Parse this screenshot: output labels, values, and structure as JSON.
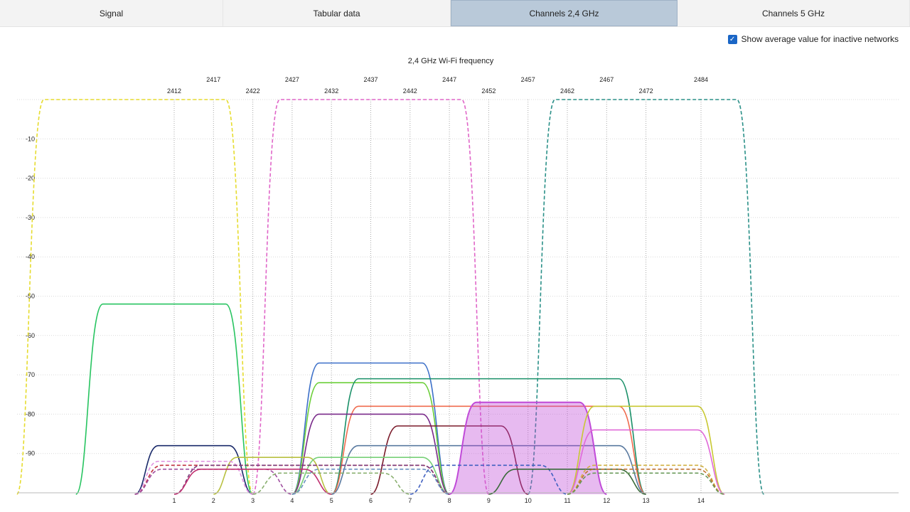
{
  "tabs": [
    {
      "label": "Signal",
      "active": false
    },
    {
      "label": "Tabular data",
      "active": false
    },
    {
      "label": "Channels 2,4 GHz",
      "active": true
    },
    {
      "label": "Channels 5 GHz",
      "active": false
    }
  ],
  "options": {
    "show_average_label": "Show average value for inactive networks",
    "show_average_checked": true
  },
  "chart_data": {
    "type": "area",
    "title": "2,4 GHz Wi-Fi frequency",
    "ylim": [
      -100,
      0
    ],
    "yticks": [
      -10,
      -20,
      -30,
      -40,
      -50,
      -60,
      -70,
      -80,
      -90
    ],
    "channels": [
      1,
      2,
      3,
      4,
      5,
      6,
      7,
      8,
      9,
      10,
      11,
      12,
      13,
      14
    ],
    "frequencies_mhz": [
      2412,
      2417,
      2422,
      2427,
      2432,
      2437,
      2442,
      2447,
      2452,
      2457,
      2462,
      2467,
      2472,
      2484
    ],
    "grid": true,
    "series": [
      {
        "channel_start": -3,
        "channel_end": 3,
        "level": 0,
        "color": "#e6dc2e",
        "style": "dashed"
      },
      {
        "channel_start": 3,
        "channel_end": 9,
        "level": 0,
        "color": "#e066c8",
        "style": "dashed"
      },
      {
        "channel_start": 10,
        "channel_end": 16,
        "level": 0,
        "color": "#2a9088",
        "style": "dashed"
      },
      {
        "channel_start": -1.5,
        "channel_end": 3,
        "level": -52,
        "color": "#27c460",
        "style": "solid"
      },
      {
        "channel_start": 4,
        "channel_end": 8,
        "level": -67,
        "color": "#3b6fc8",
        "style": "solid"
      },
      {
        "channel_start": 4,
        "channel_end": 8,
        "level": -72,
        "color": "#6ccf3a",
        "style": "solid"
      },
      {
        "channel_start": 5,
        "channel_end": 13,
        "level": -71,
        "color": "#1a9068",
        "style": "solid"
      },
      {
        "channel_start": 5,
        "channel_end": 13,
        "level": -78,
        "color": "#f06b4e",
        "style": "solid"
      },
      {
        "channel_start": 4,
        "channel_end": 8,
        "level": -80,
        "color": "#7a2a8a",
        "style": "solid"
      },
      {
        "channel_start": 6,
        "channel_end": 10,
        "level": -83,
        "color": "#7a1a2a",
        "style": "solid"
      },
      {
        "channel_start": 5,
        "channel_end": 13,
        "level": -88,
        "color": "#5a7aa0",
        "style": "solid"
      },
      {
        "channel_start": 8,
        "channel_end": 12,
        "level": -77,
        "color": "#c04ad8",
        "style": "filled"
      },
      {
        "channel_start": 11,
        "channel_end": 15,
        "level": -78,
        "color": "#c8c832",
        "style": "solid"
      },
      {
        "channel_start": 11,
        "channel_end": 15,
        "level": -84,
        "color": "#e06ad8",
        "style": "solid"
      },
      {
        "channel_start": 0,
        "channel_end": 3,
        "level": -88,
        "color": "#1a2a6a",
        "style": "solid"
      },
      {
        "channel_start": 2,
        "channel_end": 5,
        "level": -91,
        "color": "#b8c040",
        "style": "solid"
      },
      {
        "channel_start": 4,
        "channel_end": 8,
        "level": -91,
        "color": "#78d078",
        "style": "solid"
      },
      {
        "channel_start": 0,
        "channel_end": 3,
        "level": -92,
        "color": "#e090e0",
        "style": "dashed"
      },
      {
        "channel_start": 0,
        "channel_end": 8,
        "level": -93,
        "color": "#c03040",
        "style": "dashed"
      },
      {
        "channel_start": 1,
        "channel_end": 8,
        "level": -93,
        "color": "#7a3a7a",
        "style": "dashed"
      },
      {
        "channel_start": 7,
        "channel_end": 11,
        "level": -93,
        "color": "#4060c0",
        "style": "dashed"
      },
      {
        "channel_start": 0,
        "channel_end": 4,
        "level": -94,
        "color": "#a050a0",
        "style": "dashed"
      },
      {
        "channel_start": 9,
        "channel_end": 13,
        "level": -94,
        "color": "#3a6a3a",
        "style": "solid"
      },
      {
        "channel_start": 11,
        "channel_end": 15,
        "level": -93,
        "color": "#d0b040",
        "style": "dashed"
      },
      {
        "channel_start": 11,
        "channel_end": 15,
        "level": -94,
        "color": "#c07030",
        "style": "dashed"
      },
      {
        "channel_start": 11,
        "channel_end": 15,
        "level": -95,
        "color": "#6a9a5a",
        "style": "dashed"
      },
      {
        "channel_start": 4,
        "channel_end": 8,
        "level": -94,
        "color": "#6a90c0",
        "style": "dashed"
      },
      {
        "channel_start": 1,
        "channel_end": 5,
        "level": -94,
        "color": "#c03070",
        "style": "solid"
      },
      {
        "channel_start": 3,
        "channel_end": 7,
        "level": -95,
        "color": "#8ab070",
        "style": "dashed"
      }
    ]
  }
}
